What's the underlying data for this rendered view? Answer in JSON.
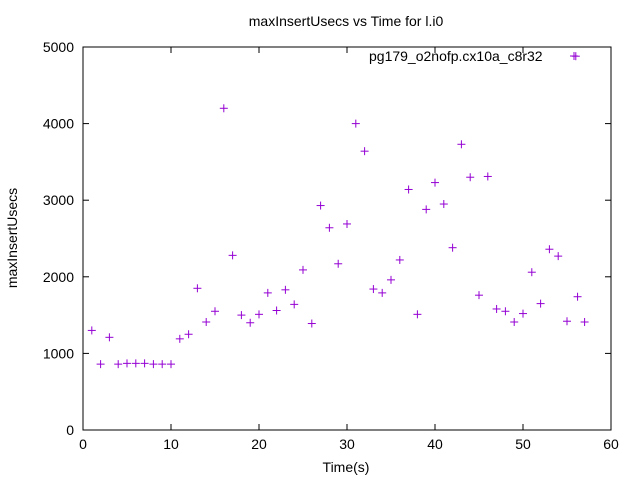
{
  "chart_data": {
    "type": "scatter",
    "title": "maxInsertUsecs vs Time for l.i0",
    "xlabel": "Time(s)",
    "ylabel": "maxInsertUsecs",
    "xlim": [
      0,
      60
    ],
    "ylim": [
      0,
      5000
    ],
    "x_ticks": [
      "0",
      "10",
      "20",
      "30",
      "40",
      "50",
      "60"
    ],
    "y_ticks": [
      "0",
      "1000",
      "2000",
      "3000",
      "4000",
      "5000"
    ],
    "grid": false,
    "legend_position": "top-right",
    "marker": "plus",
    "series": [
      {
        "name": "pg179_o2nofp.cx10a_c8r32",
        "color": "#9400d3",
        "points": [
          [
            1,
            1300
          ],
          [
            2,
            860
          ],
          [
            3,
            1210
          ],
          [
            4,
            860
          ],
          [
            5,
            870
          ],
          [
            6,
            870
          ],
          [
            7,
            870
          ],
          [
            8,
            860
          ],
          [
            9,
            860
          ],
          [
            10,
            860
          ],
          [
            11,
            1190
          ],
          [
            12,
            1250
          ],
          [
            13,
            1850
          ],
          [
            14,
            1410
          ],
          [
            15,
            1550
          ],
          [
            16,
            4200
          ],
          [
            17,
            2280
          ],
          [
            18,
            1500
          ],
          [
            19,
            1400
          ],
          [
            20,
            1510
          ],
          [
            21,
            1790
          ],
          [
            22,
            1560
          ],
          [
            23,
            1830
          ],
          [
            24,
            1640
          ],
          [
            25,
            2090
          ],
          [
            26,
            1390
          ],
          [
            27,
            2930
          ],
          [
            28,
            2640
          ],
          [
            29,
            2170
          ],
          [
            30,
            2690
          ],
          [
            31,
            4000
          ],
          [
            32,
            3640
          ],
          [
            33,
            1840
          ],
          [
            34,
            1790
          ],
          [
            35,
            1960
          ],
          [
            36,
            2220
          ],
          [
            37,
            3140
          ],
          [
            38,
            1510
          ],
          [
            39,
            2880
          ],
          [
            40,
            3230
          ],
          [
            41,
            2950
          ],
          [
            42,
            2380
          ],
          [
            43,
            3730
          ],
          [
            44,
            3300
          ],
          [
            45,
            1760
          ],
          [
            46,
            3310
          ],
          [
            47,
            1580
          ],
          [
            48,
            1550
          ],
          [
            49,
            1410
          ],
          [
            50,
            1520
          ],
          [
            51,
            2060
          ],
          [
            52,
            1650
          ],
          [
            53,
            2360
          ],
          [
            54,
            2270
          ],
          [
            55,
            1420
          ],
          [
            56,
            4880
          ],
          [
            56.2,
            1740
          ],
          [
            57,
            1410
          ]
        ]
      }
    ]
  }
}
